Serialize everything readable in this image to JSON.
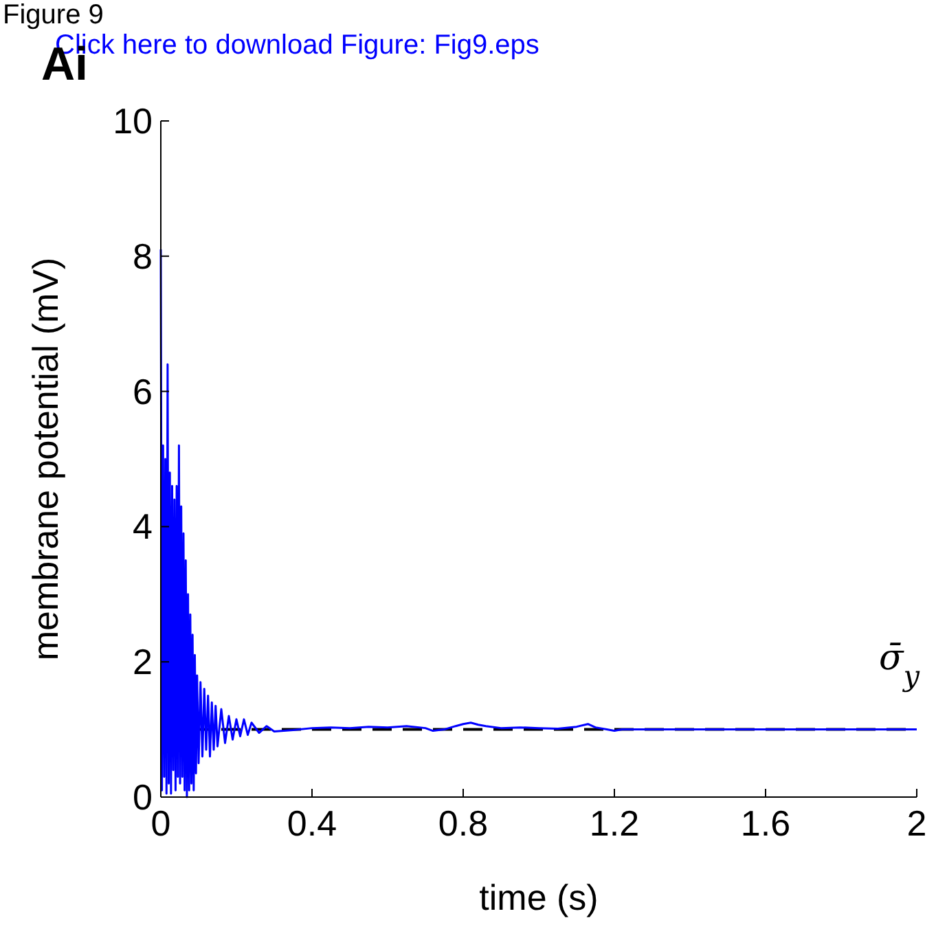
{
  "chart_data": {
    "type": "line",
    "xlabel": "time (s)",
    "ylabel": "membrane potential (mV)",
    "annotations": [
      "Figure 9",
      "Click here to download Figure: Fig9.eps",
      "Ai"
    ],
    "xlim": [
      0,
      2
    ],
    "xticks": [
      0,
      0.4,
      0.8,
      1.2,
      1.6,
      2
    ],
    "ylim": [
      0,
      10
    ],
    "yticks": [
      0,
      2,
      4,
      6,
      8,
      10
    ],
    "grid": false,
    "ref_lines": [
      {
        "axis": "y",
        "value": 1,
        "label": "σ̄$_{y}$",
        "color": "#000000",
        "line_style": "dashed"
      }
    ],
    "series": [
      {
        "color": "#0000ff",
        "line_style": "solid",
        "x": [
          0,
          0.003,
          0.006,
          0.009,
          0.012,
          0.015,
          0.018,
          0.021,
          0.024,
          0.027,
          0.03,
          0.033,
          0.036,
          0.039,
          0.042,
          0.045,
          0.048,
          0.051,
          0.054,
          0.057,
          0.06,
          0.063,
          0.066,
          0.069,
          0.072,
          0.075,
          0.078,
          0.081,
          0.084,
          0.087,
          0.09,
          0.093,
          0.096,
          0.1,
          0.105,
          0.11,
          0.115,
          0.12,
          0.125,
          0.13,
          0.135,
          0.14,
          0.145,
          0.15,
          0.16,
          0.17,
          0.18,
          0.19,
          0.2,
          0.21,
          0.22,
          0.23,
          0.24,
          0.26,
          0.28,
          0.3,
          0.35,
          0.4,
          0.45,
          0.5,
          0.55,
          0.6,
          0.65,
          0.7,
          0.72,
          0.75,
          0.78,
          0.8,
          0.82,
          0.84,
          0.86,
          0.9,
          0.95,
          1,
          1.05,
          1.1,
          1.13,
          1.15,
          1.18,
          1.2,
          1.22,
          1.25,
          1.3,
          2
        ],
        "values": [
          8.1,
          0.1,
          5.2,
          0.3,
          5.0,
          0.05,
          6.4,
          0.2,
          4.8,
          0.05,
          4.6,
          0.4,
          4.4,
          0.1,
          4.6,
          0.3,
          5.2,
          0.2,
          4.3,
          0.3,
          3.9,
          0.1,
          3.5,
          0.0,
          3.0,
          0.1,
          2.7,
          0.2,
          2.4,
          0.1,
          2.1,
          0.35,
          1.8,
          0.5,
          1.7,
          0.6,
          1.6,
          0.7,
          1.5,
          0.6,
          1.4,
          0.7,
          1.35,
          0.75,
          1.3,
          0.8,
          1.2,
          0.85,
          1.15,
          0.9,
          1.15,
          0.92,
          1.1,
          0.95,
          1.05,
          0.97,
          0.99,
          1.02,
          1.03,
          1.02,
          1.04,
          1.03,
          1.05,
          1.02,
          0.98,
          1.0,
          1.05,
          1.08,
          1.1,
          1.07,
          1.05,
          1.02,
          1.03,
          1.02,
          1.01,
          1.04,
          1.08,
          1.03,
          1.0,
          0.98,
          1.0,
          1.0,
          1.0,
          1.0
        ]
      }
    ]
  }
}
